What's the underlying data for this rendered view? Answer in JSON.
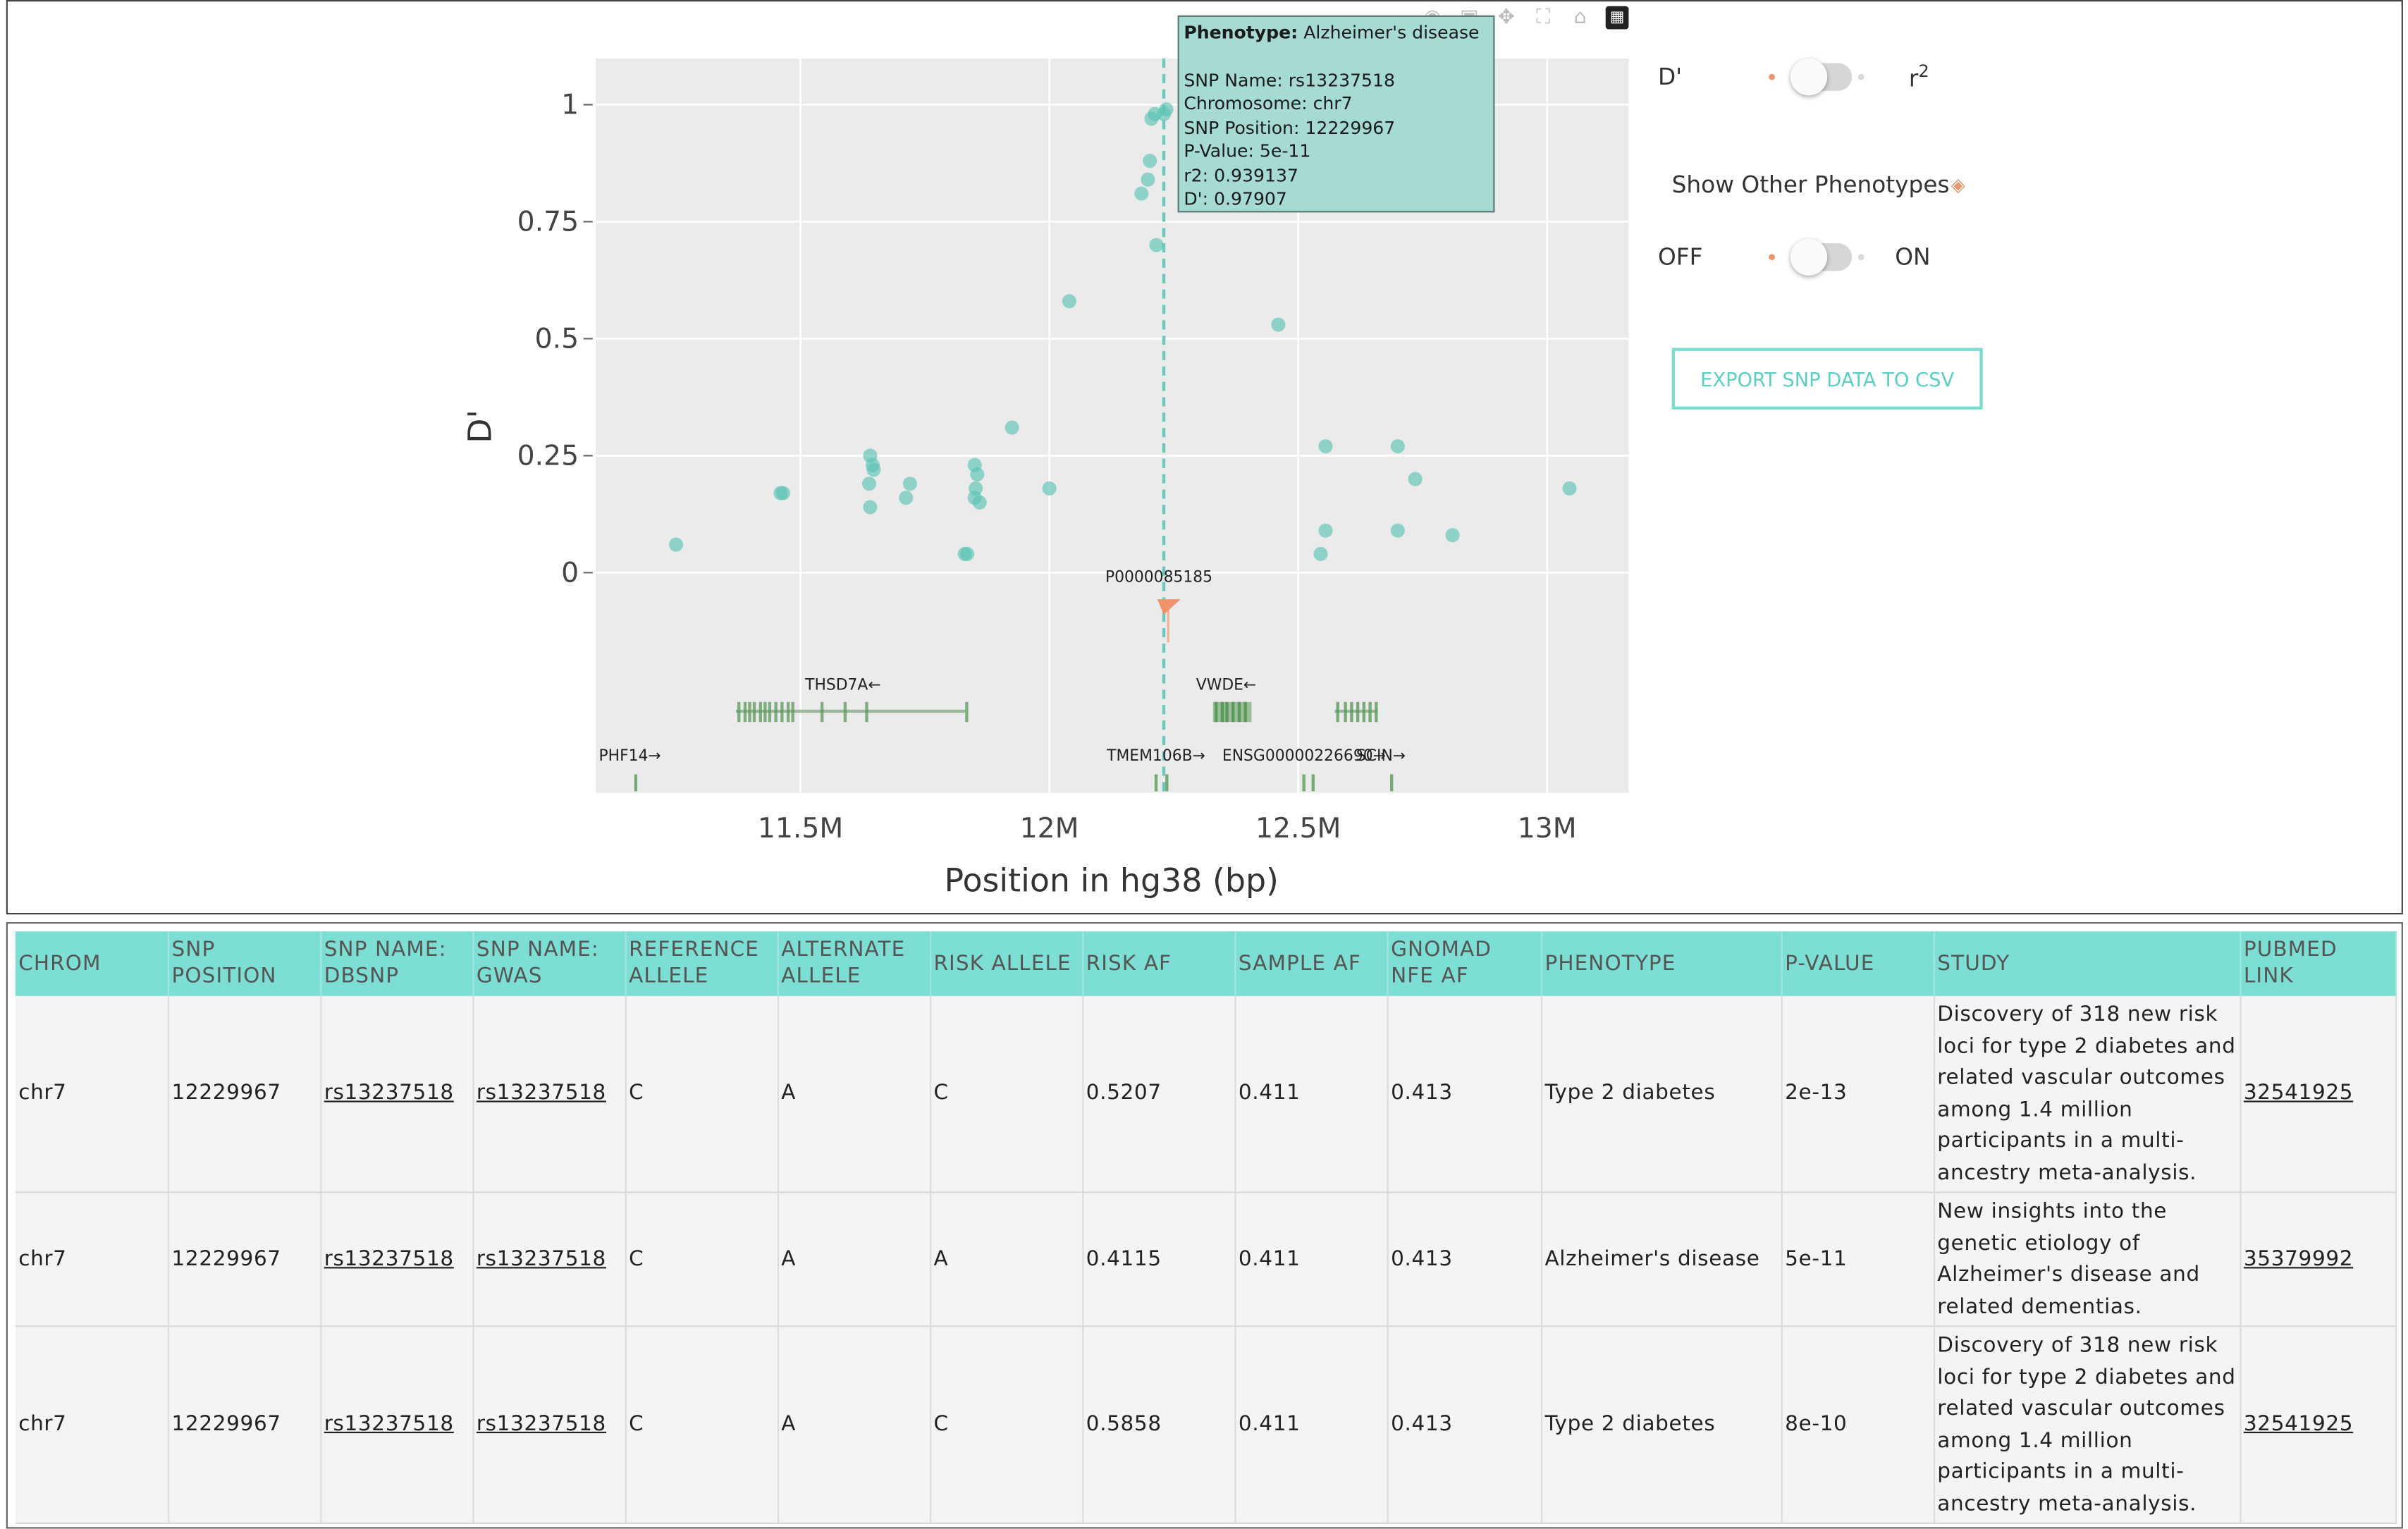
{
  "plot": {
    "ylabel": "D'",
    "xlabel": "Position in hg38 (bp)",
    "yticks": [
      "1",
      "0.75",
      "0.5",
      "0.25",
      "0"
    ],
    "xticks": [
      "11.5M",
      "12M",
      "12.5M",
      "13M"
    ],
    "marker_label": "P0000085185",
    "genes": {
      "thsd7a": "THSD7A←",
      "vwde": "VWDE←",
      "phf14": "PHF14→",
      "tmem106b": "TMEM106B→",
      "ensg": "ENSG00000226690→",
      "scin": "SCIN→"
    }
  },
  "tooltip": {
    "phenotype_label": "Phenotype:",
    "phenotype_value": "Alzheimer's disease",
    "snp_name": "SNP Name: rs13237518",
    "chromosome": "Chromosome: chr7",
    "snp_position": "SNP Position: 12229967",
    "p_value": "P-Value: 5e-11",
    "r2": "r2: 0.939137",
    "dprime": "D': 0.97907"
  },
  "modebar": {
    "icons": [
      "camera-icon",
      "zoom-icon",
      "pan-icon",
      "autoscale-icon",
      "home-icon",
      "plotly-logo-icon"
    ]
  },
  "controls": {
    "ld_left": "D'",
    "ld_right_base": "r",
    "ld_right_sup": "2",
    "show_other_label": "Show Other Phenotypes",
    "info_glyph": "◈",
    "off_label": "OFF",
    "on_label": "ON",
    "export_label": "EXPORT SNP DATA TO CSV"
  },
  "table": {
    "headers": [
      [
        "CHROM"
      ],
      [
        "SNP",
        "POSITION"
      ],
      [
        "SNP NAME:",
        "DBSNP"
      ],
      [
        "SNP NAME:",
        "GWAS"
      ],
      [
        "REFERENCE",
        "ALLELE"
      ],
      [
        "ALTERNATE",
        "ALLELE"
      ],
      [
        "RISK ALLELE"
      ],
      [
        "RISK AF"
      ],
      [
        "SAMPLE AF"
      ],
      [
        "GNOMAD",
        "NFE AF"
      ],
      [
        "PHENOTYPE"
      ],
      [
        "P-VALUE"
      ],
      [
        "STUDY"
      ],
      [
        "PUBMED",
        "LINK"
      ]
    ],
    "rows": [
      [
        "chr7",
        "12229967",
        "rs13237518",
        "rs13237518",
        "C",
        "A",
        "C",
        "0.5207",
        "0.411",
        "0.413",
        "Type 2 diabetes",
        "2e-13",
        "Discovery of 318 new risk loci for type 2 diabetes and related vascular outcomes among 1.4 million participants in a multi-ancestry meta-analysis.",
        "32541925"
      ],
      [
        "chr7",
        "12229967",
        "rs13237518",
        "rs13237518",
        "C",
        "A",
        "A",
        "0.4115",
        "0.411",
        "0.413",
        "Alzheimer's disease",
        "5e-11",
        "New insights into the genetic etiology of Alzheimer's disease and related dementias.",
        "35379992"
      ],
      [
        "chr7",
        "12229967",
        "rs13237518",
        "rs13237518",
        "C",
        "A",
        "C",
        "0.5858",
        "0.411",
        "0.413",
        "Type 2 diabetes",
        "8e-10",
        "Discovery of 318 new risk loci for type 2 diabetes and related vascular outcomes among 1.4 million participants in a multi-ancestry meta-analysis.",
        "32541925"
      ]
    ]
  },
  "chart_data": {
    "type": "scatter",
    "ylabel": "D'",
    "xlabel": "Position in hg38 (bp)",
    "xlim": [
      11090000,
      13160000
    ],
    "ylim": [
      -0.47,
      1.1
    ],
    "yticks": [
      0,
      0.25,
      0.5,
      0.75,
      1
    ],
    "xticks": [
      11500000,
      12000000,
      12500000,
      13000000
    ],
    "highlight_position": 12229967,
    "points": [
      {
        "x": 11250000,
        "y": 0.06
      },
      {
        "x": 11460000,
        "y": 0.17
      },
      {
        "x": 11465000,
        "y": 0.17
      },
      {
        "x": 11640000,
        "y": 0.25
      },
      {
        "x": 11645000,
        "y": 0.23
      },
      {
        "x": 11647000,
        "y": 0.22
      },
      {
        "x": 11638000,
        "y": 0.19
      },
      {
        "x": 11640000,
        "y": 0.14
      },
      {
        "x": 11720000,
        "y": 0.19
      },
      {
        "x": 11712000,
        "y": 0.16
      },
      {
        "x": 11830000,
        "y": 0.04
      },
      {
        "x": 11835000,
        "y": 0.04
      },
      {
        "x": 11850000,
        "y": 0.23
      },
      {
        "x": 11855000,
        "y": 0.21
      },
      {
        "x": 11852000,
        "y": 0.18
      },
      {
        "x": 11850000,
        "y": 0.16
      },
      {
        "x": 11860000,
        "y": 0.15
      },
      {
        "x": 11925000,
        "y": 0.31
      },
      {
        "x": 12000000,
        "y": 0.18
      },
      {
        "x": 12040000,
        "y": 0.58
      },
      {
        "x": 12185000,
        "y": 0.81
      },
      {
        "x": 12198000,
        "y": 0.84
      },
      {
        "x": 12202000,
        "y": 0.88
      },
      {
        "x": 12205000,
        "y": 0.97
      },
      {
        "x": 12212000,
        "y": 0.98
      },
      {
        "x": 12215000,
        "y": 0.7
      },
      {
        "x": 12229967,
        "y": 0.98
      },
      {
        "x": 12235000,
        "y": 0.99
      },
      {
        "x": 12460000,
        "y": 0.53
      },
      {
        "x": 12545000,
        "y": 0.04
      },
      {
        "x": 12555000,
        "y": 0.09
      },
      {
        "x": 12555000,
        "y": 0.27
      },
      {
        "x": 12700000,
        "y": 0.09
      },
      {
        "x": 12700000,
        "y": 0.27
      },
      {
        "x": 12735000,
        "y": 0.2
      },
      {
        "x": 12810000,
        "y": 0.08
      },
      {
        "x": 13045000,
        "y": 0.18
      }
    ],
    "marker_points": [
      {
        "label": "P0000085185",
        "x": 12245000,
        "y": -0.07
      }
    ],
    "colors": {
      "points": "#5cc3b6",
      "marker": "#f0926a",
      "panel_bg": "#ebebeb",
      "gene": "#5a9a5a"
    }
  }
}
